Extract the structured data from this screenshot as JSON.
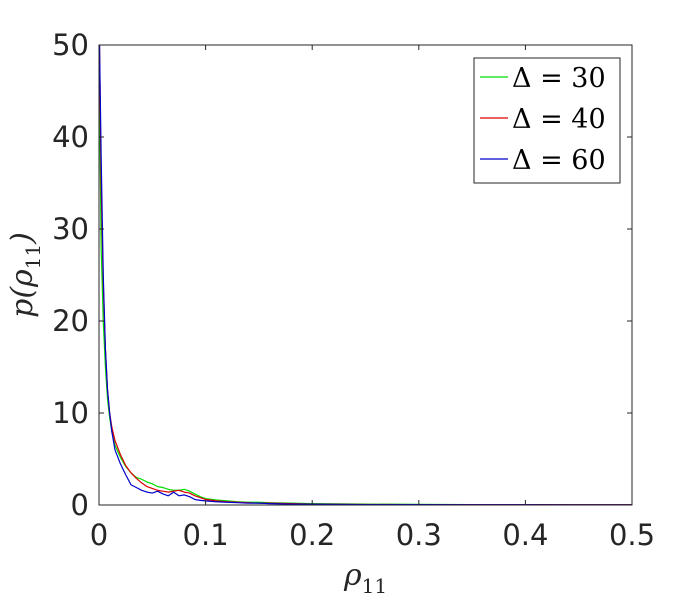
{
  "chart_data": {
    "type": "line",
    "title": "",
    "xlabel": "ρ11",
    "ylabel": "p(ρ11)",
    "xlim": [
      0,
      0.5
    ],
    "ylim": [
      0,
      50
    ],
    "x_ticks": [
      "0",
      "0.1",
      "0.2",
      "0.3",
      "0.4",
      "0.5"
    ],
    "y_ticks": [
      "0",
      "10",
      "20",
      "30",
      "40",
      "50"
    ],
    "grid": false,
    "legend_position": "top-right",
    "series": [
      {
        "name": "Δ = 30",
        "color": "#00dd00",
        "x": [
          0.0005,
          0.002,
          0.004,
          0.006,
          0.008,
          0.01,
          0.012,
          0.015,
          0.02,
          0.025,
          0.03,
          0.035,
          0.04,
          0.045,
          0.05,
          0.055,
          0.06,
          0.065,
          0.07,
          0.075,
          0.08,
          0.085,
          0.09,
          0.095,
          0.1,
          0.11,
          0.12,
          0.13,
          0.14,
          0.15,
          0.16,
          0.18,
          0.2,
          0.25,
          0.3,
          0.35,
          0.4,
          0.45,
          0.5
        ],
        "y": [
          45,
          28,
          20,
          15,
          11.5,
          9.5,
          8,
          6.5,
          5.2,
          4.2,
          3.5,
          3.0,
          2.8,
          2.5,
          2.3,
          2.0,
          1.9,
          1.7,
          1.6,
          1.6,
          1.7,
          1.5,
          1.2,
          0.9,
          0.7,
          0.55,
          0.45,
          0.35,
          0.3,
          0.3,
          0.25,
          0.2,
          0.15,
          0.1,
          0.07,
          0.05,
          0.05,
          0.04,
          0.04
        ]
      },
      {
        "name": "Δ = 40",
        "color": "#dd0000",
        "x": [
          0.0005,
          0.002,
          0.004,
          0.006,
          0.008,
          0.01,
          0.012,
          0.015,
          0.02,
          0.025,
          0.03,
          0.035,
          0.04,
          0.045,
          0.05,
          0.055,
          0.06,
          0.065,
          0.07,
          0.075,
          0.08,
          0.085,
          0.09,
          0.095,
          0.1,
          0.11,
          0.12,
          0.13,
          0.14,
          0.15,
          0.16,
          0.18,
          0.2,
          0.25,
          0.3,
          0.35,
          0.4,
          0.45,
          0.5
        ],
        "y": [
          50,
          35,
          24,
          17,
          12.5,
          10,
          8.5,
          7,
          5.5,
          4.3,
          3.5,
          2.9,
          2.4,
          2.0,
          1.8,
          1.6,
          1.5,
          1.4,
          1.5,
          1.6,
          1.4,
          1.3,
          1.0,
          0.8,
          0.6,
          0.45,
          0.35,
          0.3,
          0.25,
          0.2,
          0.2,
          0.15,
          0.1,
          0.06,
          0.05,
          0.04,
          0.04,
          0.03,
          0.03
        ]
      },
      {
        "name": "Δ = 60",
        "color": "#0000cc",
        "x": [
          0.0005,
          0.002,
          0.004,
          0.006,
          0.008,
          0.01,
          0.012,
          0.015,
          0.02,
          0.025,
          0.03,
          0.035,
          0.04,
          0.045,
          0.05,
          0.055,
          0.06,
          0.065,
          0.07,
          0.075,
          0.08,
          0.085,
          0.09,
          0.095,
          0.1,
          0.11,
          0.12,
          0.13,
          0.14,
          0.15,
          0.16,
          0.18,
          0.2,
          0.25,
          0.3,
          0.35,
          0.4,
          0.45,
          0.5
        ],
        "y": [
          50,
          38,
          25,
          17,
          12.5,
          10,
          8,
          6,
          4.5,
          3.3,
          2.2,
          1.9,
          1.6,
          1.4,
          1.3,
          1.5,
          1.2,
          1.0,
          1.4,
          1.0,
          1.1,
          0.9,
          0.6,
          0.5,
          0.45,
          0.35,
          0.3,
          0.25,
          0.2,
          0.2,
          0.15,
          0.1,
          0.08,
          0.05,
          0.04,
          0.03,
          0.03,
          0.02,
          0.02
        ]
      }
    ]
  }
}
